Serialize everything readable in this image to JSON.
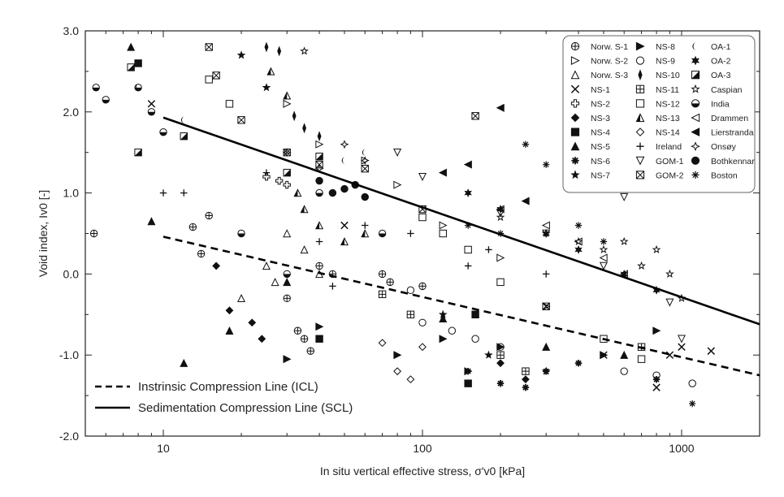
{
  "chart_data": {
    "type": "scatter",
    "xscale": "log",
    "xlim": [
      5,
      2000
    ],
    "ylim": [
      -2.0,
      3.0
    ],
    "xlabel": "In situ vertical effective stress, σ'v0 [kPa]",
    "ylabel": "Void index, Iv0 [-]",
    "x_ticks": [
      10,
      100,
      1000
    ],
    "x_tick_labels": [
      "10",
      "100",
      "1000"
    ],
    "y_ticks": [
      -2.0,
      -1.0,
      0.0,
      1.0,
      2.0,
      3.0
    ],
    "y_tick_labels": [
      "-2.0",
      "-1.0",
      "0.0",
      "1.0",
      "2.0",
      "3.0"
    ],
    "grid": false,
    "legend_position": "top-right",
    "legend": [
      {
        "label": "Norw. S-1",
        "marker": "circle-plus"
      },
      {
        "label": "Norw. S-2",
        "marker": "triangle-right-open"
      },
      {
        "label": "Norw. S-3",
        "marker": "triangle-up-open"
      },
      {
        "label": "NS-1",
        "marker": "x"
      },
      {
        "label": "NS-2",
        "marker": "plus-open"
      },
      {
        "label": "NS-3",
        "marker": "diamond-filled"
      },
      {
        "label": "NS-4",
        "marker": "square-filled"
      },
      {
        "label": "NS-5",
        "marker": "triangle-up-filled"
      },
      {
        "label": "NS-6",
        "marker": "asterisk-filled"
      },
      {
        "label": "NS-7",
        "marker": "star-filled"
      },
      {
        "label": "NS-8",
        "marker": "triangle-right-filled"
      },
      {
        "label": "NS-9",
        "marker": "circle-open"
      },
      {
        "label": "NS-10",
        "marker": "thin-diamond-filled"
      },
      {
        "label": "NS-11",
        "marker": "square-grid"
      },
      {
        "label": "NS-12",
        "marker": "square-open"
      },
      {
        "label": "NS-13",
        "marker": "triangle-half"
      },
      {
        "label": "NS-14",
        "marker": "diamond-open"
      },
      {
        "label": "Ireland",
        "marker": "plus"
      },
      {
        "label": "GOM-1",
        "marker": "triangle-down-open"
      },
      {
        "label": "GOM-2",
        "marker": "square-x"
      },
      {
        "label": "OA-1",
        "marker": "crescent"
      },
      {
        "label": "OA-2",
        "marker": "star6-filled"
      },
      {
        "label": "OA-3",
        "marker": "square-half"
      },
      {
        "label": "Caspian",
        "marker": "star-open"
      },
      {
        "label": "India",
        "marker": "circle-half"
      },
      {
        "label": "Drammen",
        "marker": "triangle-left-open"
      },
      {
        "label": "Lierstranda",
        "marker": "triangle-left-filled"
      },
      {
        "label": "Onsøy",
        "marker": "cross4-open"
      },
      {
        "label": "Bothkennar",
        "marker": "circle-filled"
      },
      {
        "label": "Boston",
        "marker": "asterisk"
      }
    ],
    "lines": [
      {
        "name": "Instrinsic Compression Line (ICL)",
        "style": "dashed",
        "x": [
          10,
          2000
        ],
        "y": [
          0.46,
          -1.25
        ]
      },
      {
        "name": "Sedimentation Compression Line (SCL)",
        "style": "solid",
        "x": [
          10,
          2000
        ],
        "y": [
          1.93,
          -0.62
        ]
      }
    ],
    "line_legend_position": "bottom-left",
    "series": [
      {
        "name": "Norw. S-1",
        "x": [
          5.4,
          13,
          14,
          15,
          30,
          33,
          35,
          37,
          40,
          45,
          70,
          75,
          100
        ],
        "y": [
          0.5,
          0.58,
          0.25,
          0.72,
          -0.3,
          -0.7,
          -0.8,
          -0.95,
          0.1,
          0.0,
          0.0,
          -0.1,
          -0.15
        ]
      },
      {
        "name": "Norw. S-2",
        "x": [
          30,
          40,
          60,
          80,
          120,
          200,
          300
        ],
        "y": [
          2.1,
          1.6,
          1.4,
          1.1,
          0.6,
          0.2,
          -0.4
        ]
      },
      {
        "name": "Norw. S-3",
        "x": [
          20,
          25,
          27,
          30,
          35,
          40
        ],
        "y": [
          -0.3,
          0.1,
          -0.1,
          0.5,
          0.3,
          0.0
        ]
      },
      {
        "name": "NS-1",
        "x": [
          9,
          50,
          300,
          500,
          800,
          900,
          1000,
          1300
        ],
        "y": [
          2.1,
          0.6,
          -0.4,
          -1.0,
          -1.4,
          -1.0,
          -0.9,
          -0.95
        ]
      },
      {
        "name": "NS-2",
        "x": [
          25,
          28,
          30
        ],
        "y": [
          1.2,
          1.15,
          1.1
        ]
      },
      {
        "name": "NS-3",
        "x": [
          16,
          18,
          22,
          24,
          200,
          250
        ],
        "y": [
          0.1,
          -0.45,
          -0.6,
          -0.8,
          -1.1,
          -1.3
        ]
      },
      {
        "name": "NS-4",
        "x": [
          8,
          40,
          150,
          160
        ],
        "y": [
          2.6,
          -0.8,
          -1.35,
          -0.5
        ]
      },
      {
        "name": "NS-5",
        "x": [
          7.5,
          9,
          12,
          18,
          30,
          120,
          300,
          600
        ],
        "y": [
          2.8,
          0.65,
          -1.1,
          -0.7,
          -0.1,
          -0.55,
          -0.9,
          -1.0
        ]
      },
      {
        "name": "NS-6",
        "x": [
          150,
          200,
          250,
          300,
          400,
          800
        ],
        "y": [
          -1.2,
          -1.35,
          -1.4,
          -1.2,
          -1.1,
          -1.3
        ]
      },
      {
        "name": "NS-7",
        "x": [
          20,
          25,
          120,
          180,
          300
        ],
        "y": [
          2.7,
          2.3,
          -0.5,
          -1.0,
          -1.2
        ]
      },
      {
        "name": "NS-8",
        "x": [
          30,
          40,
          80,
          120,
          150,
          200,
          500,
          800
        ],
        "y": [
          -1.05,
          -0.65,
          -1.0,
          -0.8,
          -1.2,
          -0.9,
          -1.0,
          -0.7
        ]
      },
      {
        "name": "NS-9",
        "x": [
          90,
          100,
          130,
          160,
          200,
          600,
          800,
          1100
        ],
        "y": [
          -0.2,
          -0.6,
          -0.7,
          -0.8,
          -0.9,
          -1.2,
          -1.25,
          -1.35
        ]
      },
      {
        "name": "NS-10",
        "x": [
          25,
          28,
          32,
          35,
          40
        ],
        "y": [
          2.8,
          2.75,
          1.95,
          1.8,
          1.7
        ]
      },
      {
        "name": "NS-11",
        "x": [
          70,
          90,
          200,
          250,
          700
        ],
        "y": [
          -0.25,
          -0.5,
          -1.0,
          -1.2,
          -0.9
        ]
      },
      {
        "name": "NS-12",
        "x": [
          15,
          18,
          100,
          120,
          150,
          200,
          300,
          500,
          700
        ],
        "y": [
          2.4,
          2.1,
          0.7,
          0.5,
          0.3,
          -0.1,
          -0.4,
          -0.8,
          -1.05
        ]
      },
      {
        "name": "NS-13",
        "x": [
          26,
          30,
          33,
          35,
          40,
          50,
          60
        ],
        "y": [
          2.5,
          2.2,
          1.0,
          0.8,
          0.6,
          0.4,
          0.5
        ]
      },
      {
        "name": "NS-14",
        "x": [
          70,
          80,
          90,
          100
        ],
        "y": [
          -0.85,
          -1.2,
          -1.3,
          -0.9
        ]
      },
      {
        "name": "Ireland",
        "x": [
          10,
          12,
          25,
          40,
          45,
          60,
          90,
          150,
          180,
          300
        ],
        "y": [
          1.0,
          1.0,
          1.25,
          0.4,
          -0.15,
          0.6,
          0.5,
          0.1,
          0.3,
          0.0
        ]
      },
      {
        "name": "GOM-1",
        "x": [
          80,
          100,
          200,
          300,
          500,
          600,
          900,
          1000
        ],
        "y": [
          1.5,
          1.2,
          0.75,
          0.5,
          0.1,
          0.95,
          -0.35,
          -0.8
        ]
      },
      {
        "name": "GOM-2",
        "x": [
          15,
          16,
          20,
          30,
          40,
          60,
          100,
          160
        ],
        "y": [
          2.8,
          2.45,
          1.9,
          1.5,
          1.35,
          1.3,
          0.8,
          1.95
        ]
      },
      {
        "name": "OA-1",
        "x": [
          8,
          12,
          30,
          50,
          60
        ],
        "y": [
          2.3,
          1.9,
          1.5,
          1.4,
          1.5
        ]
      },
      {
        "name": "OA-2",
        "x": [
          150,
          200,
          300,
          400,
          600,
          800
        ],
        "y": [
          1.0,
          0.8,
          0.5,
          0.3,
          0.0,
          -0.2
        ]
      },
      {
        "name": "OA-3",
        "x": [
          7.5,
          8,
          12,
          30,
          40
        ],
        "y": [
          2.55,
          1.5,
          1.7,
          1.25,
          1.45
        ]
      },
      {
        "name": "Caspian",
        "x": [
          35,
          200,
          300,
          400,
          500,
          600,
          700,
          800,
          900,
          1000
        ],
        "y": [
          2.75,
          0.7,
          0.5,
          0.4,
          0.3,
          0.4,
          0.1,
          0.3,
          0.0,
          -0.3
        ]
      },
      {
        "name": "India",
        "x": [
          5.5,
          6,
          8,
          9,
          10,
          20,
          30,
          40,
          70
        ],
        "y": [
          2.3,
          2.15,
          2.3,
          2.0,
          1.75,
          0.5,
          0.0,
          1.0,
          0.5
        ]
      },
      {
        "name": "Drammen",
        "x": [
          200,
          300,
          400,
          500,
          600
        ],
        "y": [
          0.8,
          0.6,
          0.4,
          0.2,
          0.0
        ]
      },
      {
        "name": "Lierstranda",
        "x": [
          120,
          150,
          200,
          250
        ],
        "y": [
          1.25,
          1.35,
          2.05,
          0.9
        ]
      },
      {
        "name": "Onsøy",
        "x": [
          30,
          40,
          50,
          60
        ],
        "y": [
          1.5,
          1.3,
          1.6,
          1.4
        ]
      },
      {
        "name": "Bothkennar",
        "x": [
          40,
          45,
          50,
          55,
          60
        ],
        "y": [
          1.15,
          1.0,
          1.05,
          1.1,
          0.95
        ]
      },
      {
        "name": "Boston",
        "x": [
          150,
          200,
          250,
          300,
          400,
          500,
          1100
        ],
        "y": [
          0.6,
          0.5,
          1.6,
          1.35,
          0.6,
          0.4,
          -1.6
        ]
      }
    ]
  }
}
